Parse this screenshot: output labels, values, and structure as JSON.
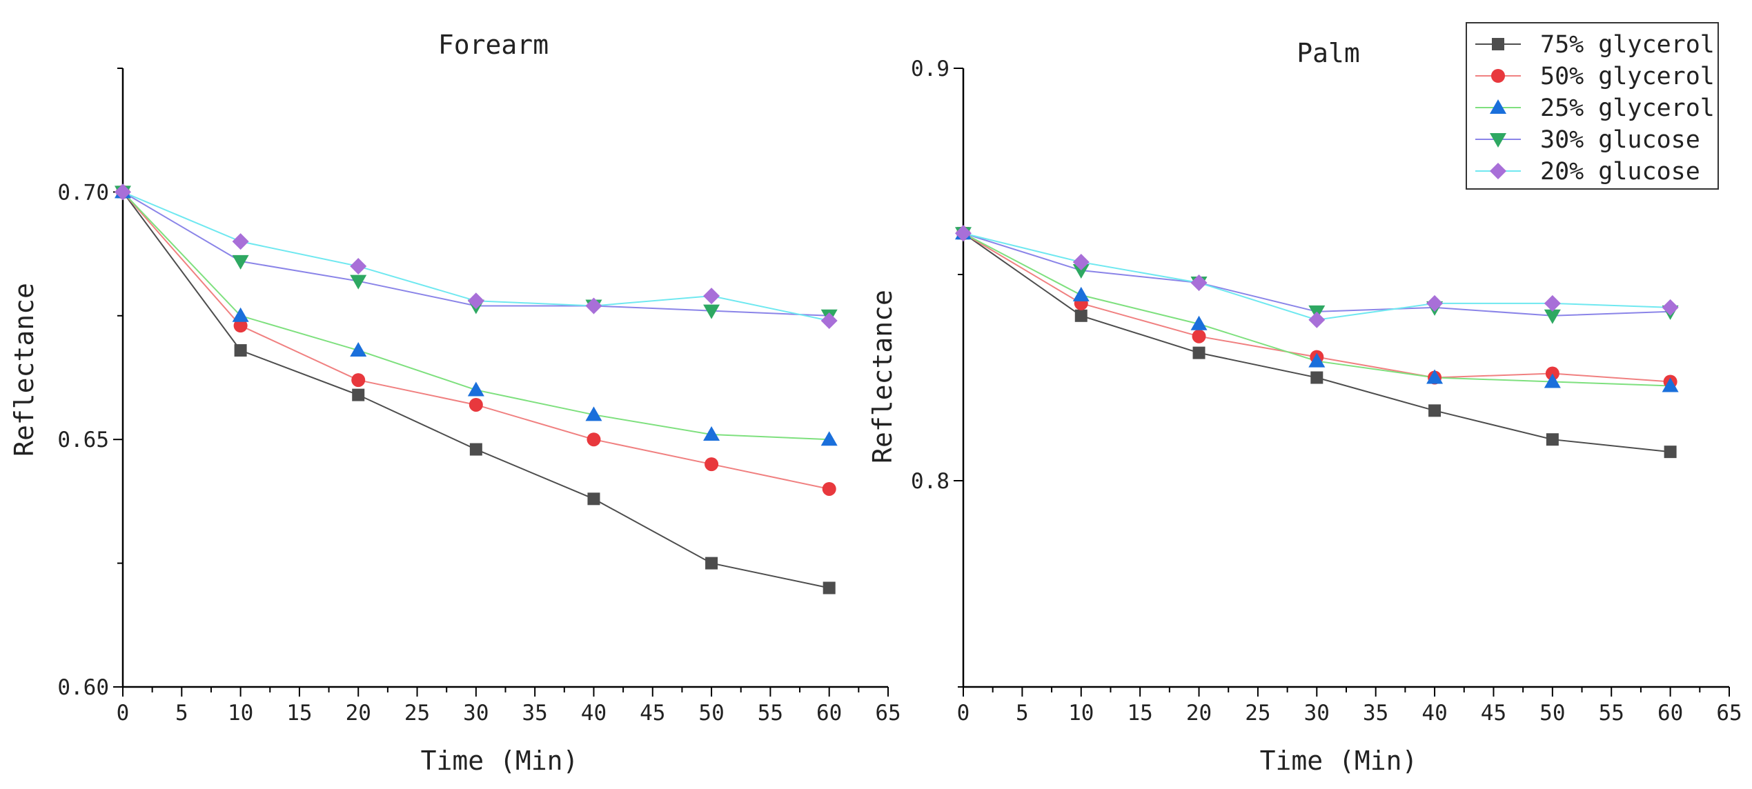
{
  "chart_data": [
    {
      "type": "line",
      "title": "Forearm",
      "xlabel": "Time (Min)",
      "ylabel": "Reflectance",
      "xlim": [
        0,
        65
      ],
      "ylim": [
        0.6,
        0.725
      ],
      "xticks": [
        "0",
        "5",
        "10",
        "15",
        "20",
        "25",
        "30",
        "35",
        "40",
        "45",
        "50",
        "55",
        "60",
        "65"
      ],
      "yticks": [
        "0.60",
        "0.65",
        "0.70"
      ],
      "x": [
        0,
        10,
        20,
        30,
        40,
        50,
        60
      ],
      "series": [
        {
          "name": "75% glycerol",
          "values": [
            0.7,
            0.668,
            0.659,
            0.648,
            0.638,
            0.625,
            0.62
          ]
        },
        {
          "name": "50% glycerol",
          "values": [
            0.7,
            0.673,
            0.662,
            0.657,
            0.65,
            0.645,
            0.64
          ]
        },
        {
          "name": "25% glycerol",
          "values": [
            0.7,
            0.675,
            0.668,
            0.66,
            0.655,
            0.651,
            0.65
          ]
        },
        {
          "name": "30% glucose",
          "values": [
            0.7,
            0.686,
            0.682,
            0.677,
            0.677,
            0.676,
            0.675
          ]
        },
        {
          "name": "20% glucose",
          "values": [
            0.7,
            0.69,
            0.685,
            0.678,
            0.677,
            0.679,
            0.674
          ]
        }
      ]
    },
    {
      "type": "line",
      "title": "Palm",
      "xlabel": "Time (Min)",
      "ylabel": "Reflectance",
      "xlim": [
        0,
        65
      ],
      "ylim": [
        0.75,
        0.9
      ],
      "xticks": [
        "0",
        "5",
        "10",
        "15",
        "20",
        "25",
        "30",
        "35",
        "40",
        "45",
        "50",
        "55",
        "60",
        "65"
      ],
      "yticks": [
        "0.8",
        "0.9"
      ],
      "x": [
        0,
        10,
        20,
        30,
        40,
        50,
        60
      ],
      "series": [
        {
          "name": "75% glycerol",
          "values": [
            0.86,
            0.84,
            0.831,
            0.825,
            0.817,
            0.81,
            0.807
          ]
        },
        {
          "name": "50% glycerol",
          "values": [
            0.86,
            0.843,
            0.835,
            0.83,
            0.825,
            0.826,
            0.824
          ]
        },
        {
          "name": "25% glycerol",
          "values": [
            0.86,
            0.845,
            0.838,
            0.829,
            0.825,
            0.824,
            0.823
          ]
        },
        {
          "name": "30% glucose",
          "values": [
            0.86,
            0.851,
            0.848,
            0.841,
            0.842,
            0.84,
            0.841
          ]
        },
        {
          "name": "20% glucose",
          "values": [
            0.86,
            0.853,
            0.848,
            0.839,
            0.843,
            0.843,
            0.842
          ]
        }
      ]
    }
  ],
  "legend": {
    "items": [
      {
        "label": "75% glycerol",
        "color": "#4d4d4d",
        "marker": "square"
      },
      {
        "label": "50% glycerol",
        "color": "#e8383d",
        "marker": "circle"
      },
      {
        "label": "25% glycerol",
        "color": "#1a6fdb",
        "marker": "triangle-up"
      },
      {
        "label": "30% glucose",
        "color": "#2ea862",
        "marker": "triangle-down"
      },
      {
        "label": "20% glucose",
        "color": "#a86fd8",
        "marker": "diamond"
      }
    ],
    "line_colors": [
      "#4d4d4d",
      "#f08080",
      "#7ee07e",
      "#8a84e8",
      "#6fe8f0"
    ]
  }
}
